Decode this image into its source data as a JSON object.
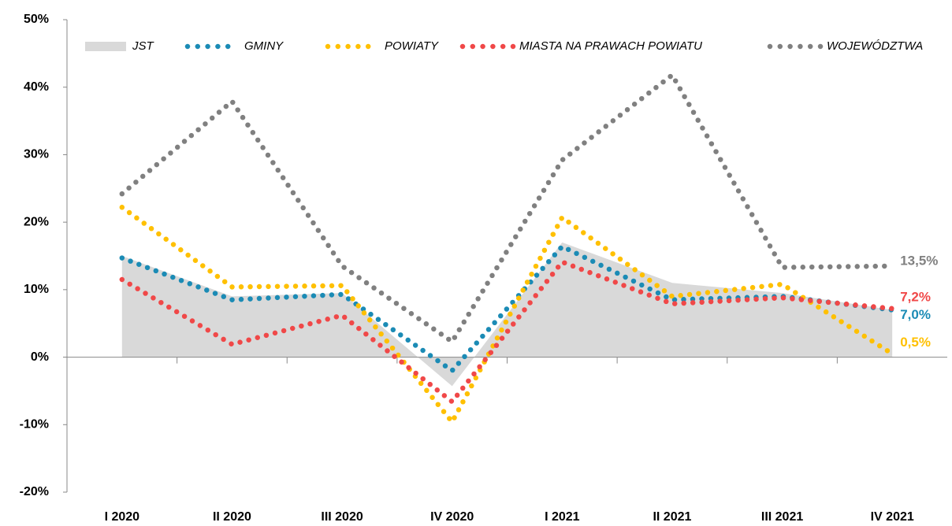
{
  "chart_data": {
    "type": "line",
    "categories": [
      "I 2020",
      "II 2020",
      "III 2020",
      "IV 2020",
      "I 2021",
      "II 2021",
      "III 2021",
      "IV 2021"
    ],
    "ylim": [
      -20,
      50
    ],
    "yticks": [
      {
        "value": -20,
        "label": "-20%"
      },
      {
        "value": -10,
        "label": "-10%"
      },
      {
        "value": 0,
        "label": "0%"
      },
      {
        "value": 10,
        "label": "10%"
      },
      {
        "value": 20,
        "label": "20%"
      },
      {
        "value": 30,
        "label": "30%"
      },
      {
        "value": 40,
        "label": "40%"
      },
      {
        "value": 50,
        "label": "50%"
      }
    ],
    "series": [
      {
        "name": "JST",
        "color": "#d9d9d9",
        "style": "area",
        "values": [
          15,
          9,
          9.5,
          -4.3,
          17,
          11,
          9.5,
          7
        ]
      },
      {
        "name": "GMINY",
        "color": "#1b8bb5",
        "style": "dotted",
        "values": [
          14.7,
          8.5,
          9.3,
          -2.0,
          16.4,
          8.5,
          9.0,
          7.0
        ],
        "value_labels": [
          null,
          null,
          null,
          null,
          null,
          null,
          null,
          "7,0%"
        ]
      },
      {
        "name": "POWIATY",
        "color": "#ffc000",
        "style": "dotted",
        "values": [
          22.2,
          10.4,
          10.6,
          -9.6,
          20.7,
          9.0,
          10.8,
          0.5
        ],
        "value_labels": [
          null,
          null,
          null,
          null,
          null,
          null,
          null,
          "0,5%"
        ]
      },
      {
        "name": "MIASTA NA PRAWACH POWIATU",
        "color": "#f04848",
        "style": "dotted",
        "values": [
          11.5,
          1.9,
          6.2,
          -6.6,
          14.1,
          7.9,
          8.8,
          7.2
        ],
        "value_labels": [
          null,
          null,
          null,
          null,
          null,
          null,
          null,
          "7,2%"
        ]
      },
      {
        "name": "WOJEWÓDZTWA",
        "color": "#808080",
        "style": "dotted",
        "values": [
          24.2,
          37.9,
          13.5,
          2.3,
          29.2,
          41.8,
          13.3,
          13.5
        ],
        "value_labels": [
          null,
          null,
          null,
          null,
          null,
          null,
          null,
          "13,5%"
        ]
      }
    ]
  }
}
